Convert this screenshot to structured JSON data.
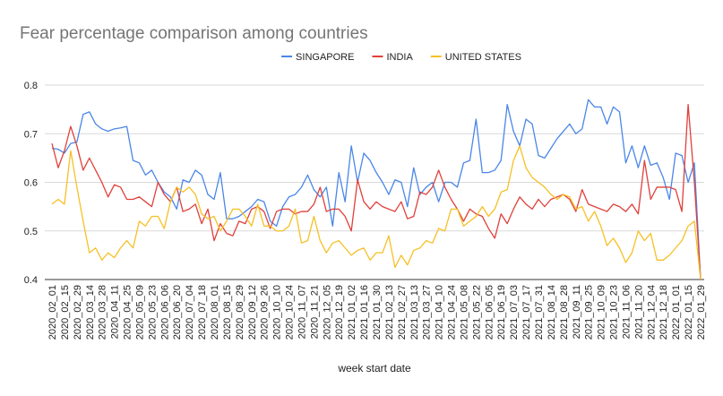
{
  "chart_data": {
    "type": "line",
    "title": "Fear percentage comparison among countries",
    "x_label": "week start date",
    "categories": [
      "2020_02_01",
      null,
      "2020_02_15",
      null,
      "2020_02_29",
      null,
      "2020_03_14",
      null,
      "2020_03_28",
      null,
      "2020_04_11",
      null,
      "2020_04_25",
      null,
      "2020_05_09",
      null,
      "2020_05_23",
      null,
      "2020_06_06",
      null,
      "2020_06_20",
      null,
      "2020_07_04",
      null,
      "2020_07_18",
      null,
      "2020_08_01",
      null,
      "2020_08_15",
      null,
      "2020_08_29",
      null,
      "2020_09_12",
      null,
      "2020_09_26",
      null,
      "2020_10_10",
      null,
      "2020_10_24",
      null,
      "2020_11_07",
      null,
      "2020_11_21",
      null,
      "2020_12_05",
      null,
      "2020_12_19",
      null,
      "2021_01_02",
      null,
      "2021_01_16",
      null,
      "2021_01_30",
      null,
      "2021_02_13",
      null,
      "2021_02_27",
      null,
      "2021_03_13",
      null,
      "2021_03_27",
      null,
      "2021_04_10",
      null,
      "2021_04_24",
      null,
      "2021_05_08",
      null,
      "2021_05_22",
      null,
      "2021_06_05",
      null,
      "2021_06_19",
      null,
      "2021_07_03",
      null,
      "2021_07_17",
      null,
      "2021_07_31",
      null,
      "2021_08_14",
      null,
      "2021_08_28",
      null,
      "2021_09_11",
      null,
      "2021_09_25",
      null,
      "2021_10_09",
      null,
      "2021_10_23",
      null,
      "2021_11_06",
      null,
      "2021_11_20",
      null,
      "2021_12_04",
      null,
      "2021_12_18",
      null,
      "2022_01_01",
      null,
      "2022_01_15",
      null,
      "2022_01_29"
    ],
    "series": [
      {
        "name": "SINGAPORE",
        "color": "#4a86e8",
        "values": [
          0.67,
          0.668,
          0.66,
          0.68,
          0.683,
          0.74,
          0.745,
          0.72,
          0.71,
          0.705,
          0.71,
          0.712,
          0.715,
          0.645,
          0.64,
          0.615,
          0.625,
          0.6,
          0.58,
          0.57,
          0.545,
          0.605,
          0.6,
          0.625,
          0.615,
          0.575,
          0.565,
          0.62,
          0.525,
          0.525,
          0.53,
          0.54,
          0.55,
          0.565,
          0.56,
          0.52,
          0.51,
          0.55,
          0.57,
          0.575,
          0.59,
          0.615,
          0.585,
          0.57,
          0.59,
          0.51,
          0.62,
          0.56,
          0.675,
          0.6,
          0.66,
          0.645,
          0.62,
          0.6,
          0.575,
          0.605,
          0.6,
          0.55,
          0.63,
          0.575,
          0.59,
          0.6,
          0.56,
          0.6,
          0.6,
          0.59,
          0.64,
          0.645,
          0.73,
          0.62,
          0.62,
          0.625,
          0.645,
          0.76,
          0.705,
          0.675,
          0.73,
          0.72,
          0.655,
          0.65,
          0.67,
          0.69,
          0.705,
          0.72,
          0.7,
          0.71,
          0.77,
          0.755,
          0.755,
          0.72,
          0.755,
          0.745,
          0.64,
          0.675,
          0.63,
          0.675,
          0.635,
          0.64,
          0.61,
          0.565,
          0.66,
          0.655,
          0.6,
          0.64,
          0.4
        ]
      },
      {
        "name": "INDIA",
        "color": "#e0403a",
        "values": [
          0.68,
          0.63,
          0.665,
          0.715,
          0.675,
          0.625,
          0.65,
          0.625,
          0.6,
          0.57,
          0.595,
          0.59,
          0.565,
          0.565,
          0.57,
          0.56,
          0.55,
          0.6,
          0.575,
          0.56,
          0.59,
          0.54,
          0.545,
          0.555,
          0.515,
          0.545,
          0.48,
          0.515,
          0.495,
          0.49,
          0.52,
          0.515,
          0.545,
          0.55,
          0.54,
          0.505,
          0.54,
          0.545,
          0.545,
          0.535,
          0.54,
          0.54,
          0.555,
          0.59,
          0.54,
          0.545,
          0.545,
          0.53,
          0.5,
          0.605,
          0.56,
          0.545,
          0.56,
          0.55,
          0.545,
          0.54,
          0.56,
          0.525,
          0.53,
          0.58,
          0.575,
          0.59,
          0.625,
          0.59,
          0.565,
          0.545,
          0.52,
          0.545,
          0.535,
          0.53,
          0.505,
          0.485,
          0.535,
          0.515,
          0.545,
          0.57,
          0.555,
          0.545,
          0.565,
          0.55,
          0.565,
          0.57,
          0.575,
          0.565,
          0.54,
          0.585,
          0.555,
          0.55,
          0.545,
          0.54,
          0.555,
          0.55,
          0.54,
          0.555,
          0.535,
          0.645,
          0.565,
          0.59,
          0.59,
          0.59,
          0.585,
          0.54,
          0.76,
          0.6,
          0.4
        ]
      },
      {
        "name": "UNITED STATES",
        "color": "#f6c026",
        "values": [
          0.555,
          0.565,
          0.555,
          0.665,
          0.59,
          0.52,
          0.455,
          0.465,
          0.44,
          0.455,
          0.445,
          0.465,
          0.48,
          0.465,
          0.52,
          0.51,
          0.53,
          0.53,
          0.505,
          0.56,
          0.59,
          0.58,
          0.59,
          0.575,
          0.535,
          0.525,
          0.53,
          0.5,
          0.52,
          0.545,
          0.545,
          0.53,
          0.51,
          0.555,
          0.51,
          0.51,
          0.5,
          0.5,
          0.51,
          0.545,
          0.475,
          0.48,
          0.53,
          0.48,
          0.455,
          0.475,
          0.48,
          0.465,
          0.45,
          0.46,
          0.465,
          0.44,
          0.455,
          0.455,
          0.49,
          0.425,
          0.45,
          0.43,
          0.46,
          0.465,
          0.48,
          0.475,
          0.505,
          0.5,
          0.545,
          0.545,
          0.51,
          0.52,
          0.53,
          0.55,
          0.53,
          0.545,
          0.58,
          0.585,
          0.645,
          0.675,
          0.63,
          0.61,
          0.6,
          0.59,
          0.575,
          0.565,
          0.575,
          0.57,
          0.545,
          0.55,
          0.52,
          0.54,
          0.51,
          0.47,
          0.485,
          0.465,
          0.435,
          0.455,
          0.5,
          0.48,
          0.495,
          0.44,
          0.44,
          0.45,
          0.465,
          0.48,
          0.51,
          0.52,
          0.4
        ]
      }
    ],
    "ylim": [
      0.4,
      0.8
    ],
    "yticks": [
      0.4,
      0.5,
      0.6,
      0.7,
      0.8
    ],
    "grid": true
  }
}
